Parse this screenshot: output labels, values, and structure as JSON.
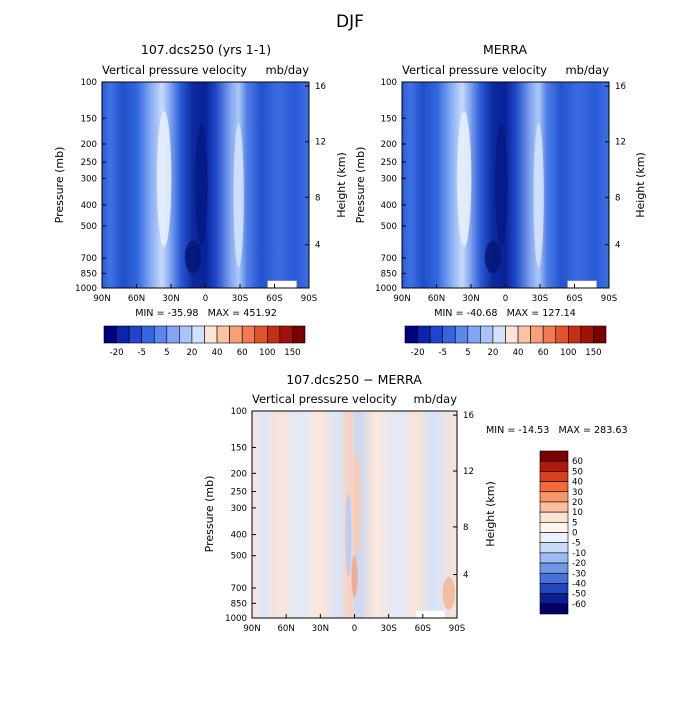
{
  "figure": {
    "title": "DJF"
  },
  "chart_data": [
    {
      "type": "heatmap",
      "title": "107.dcs250 (yrs 1-1)",
      "subtitle_left": "Vertical pressure velocity",
      "subtitle_right": "mb/day",
      "xlabel": "",
      "ylabel": "Pressure (mb)",
      "ylabel_right": "Height (km)",
      "x_ticks": [
        "90N",
        "60N",
        "30N",
        "0",
        "30S",
        "60S",
        "90S"
      ],
      "y_ticks": [
        "100",
        "150",
        "200",
        "250",
        "300",
        "400",
        "500",
        "700",
        "850",
        "1000"
      ],
      "y_ticks_right": [
        "16",
        "12",
        "8",
        "4"
      ],
      "stats": "MIN = -35.98   MAX = 451.92",
      "colorbar": {
        "labels": [
          "-20",
          "-5",
          "5",
          "20",
          "40",
          "60",
          "100",
          "150"
        ],
        "colors": [
          "#00007f",
          "#0b24b0",
          "#1f44cf",
          "#3466e0",
          "#5a87ee",
          "#82a6f5",
          "#aac4fa",
          "#d2e2fc",
          "#fde4d4",
          "#fbc3a6",
          "#f7a07a",
          "#f07b52",
          "#e0552c",
          "#c43015",
          "#a01208",
          "#7a0000"
        ]
      }
    },
    {
      "type": "heatmap",
      "title": "MERRA",
      "subtitle_left": "Vertical pressure velocity",
      "subtitle_right": "mb/day",
      "xlabel": "",
      "ylabel": "Pressure (mb)",
      "ylabel_right": "Height (km)",
      "x_ticks": [
        "90N",
        "60N",
        "30N",
        "0",
        "30S",
        "60S",
        "90S"
      ],
      "y_ticks": [
        "100",
        "150",
        "200",
        "250",
        "300",
        "400",
        "500",
        "700",
        "850",
        "1000"
      ],
      "y_ticks_right": [
        "16",
        "12",
        "8",
        "4"
      ],
      "stats": "MIN = -40.68   MAX = 127.14",
      "colorbar": {
        "labels": [
          "-20",
          "-5",
          "5",
          "20",
          "40",
          "60",
          "100",
          "150"
        ],
        "colors": [
          "#00007f",
          "#0b24b0",
          "#1f44cf",
          "#3466e0",
          "#5a87ee",
          "#82a6f5",
          "#aac4fa",
          "#d2e2fc",
          "#fde4d4",
          "#fbc3a6",
          "#f7a07a",
          "#f07b52",
          "#e0552c",
          "#c43015",
          "#a01208",
          "#7a0000"
        ]
      }
    },
    {
      "type": "heatmap",
      "title": "107.dcs250 − MERRA",
      "subtitle_left": "Vertical pressure velocity",
      "subtitle_right": "mb/day",
      "xlabel": "",
      "ylabel": "Pressure (mb)",
      "ylabel_right": "Height (km)",
      "x_ticks": [
        "90N",
        "60N",
        "30N",
        "0",
        "30S",
        "60S",
        "90S"
      ],
      "y_ticks": [
        "100",
        "150",
        "200",
        "250",
        "300",
        "400",
        "500",
        "700",
        "850",
        "1000"
      ],
      "y_ticks_right": [
        "16",
        "12",
        "8",
        "4"
      ],
      "stats": "MIN = -14.53   MAX = 283.63",
      "colorbar": {
        "labels": [
          "60",
          "50",
          "40",
          "30",
          "20",
          "10",
          "5",
          "0",
          "-5",
          "-10",
          "-20",
          "-30",
          "-40",
          "-50",
          "-60"
        ],
        "colors": [
          "#7a0000",
          "#b01a0a",
          "#d8401f",
          "#f06a3c",
          "#f89868",
          "#fbbfa0",
          "#fde3d2",
          "#fff5ee",
          "#e8f1fc",
          "#c7dbf8",
          "#9bbcf1",
          "#6f97e6",
          "#4671d8",
          "#2246bd",
          "#0c1f95",
          "#000066"
        ]
      }
    }
  ]
}
